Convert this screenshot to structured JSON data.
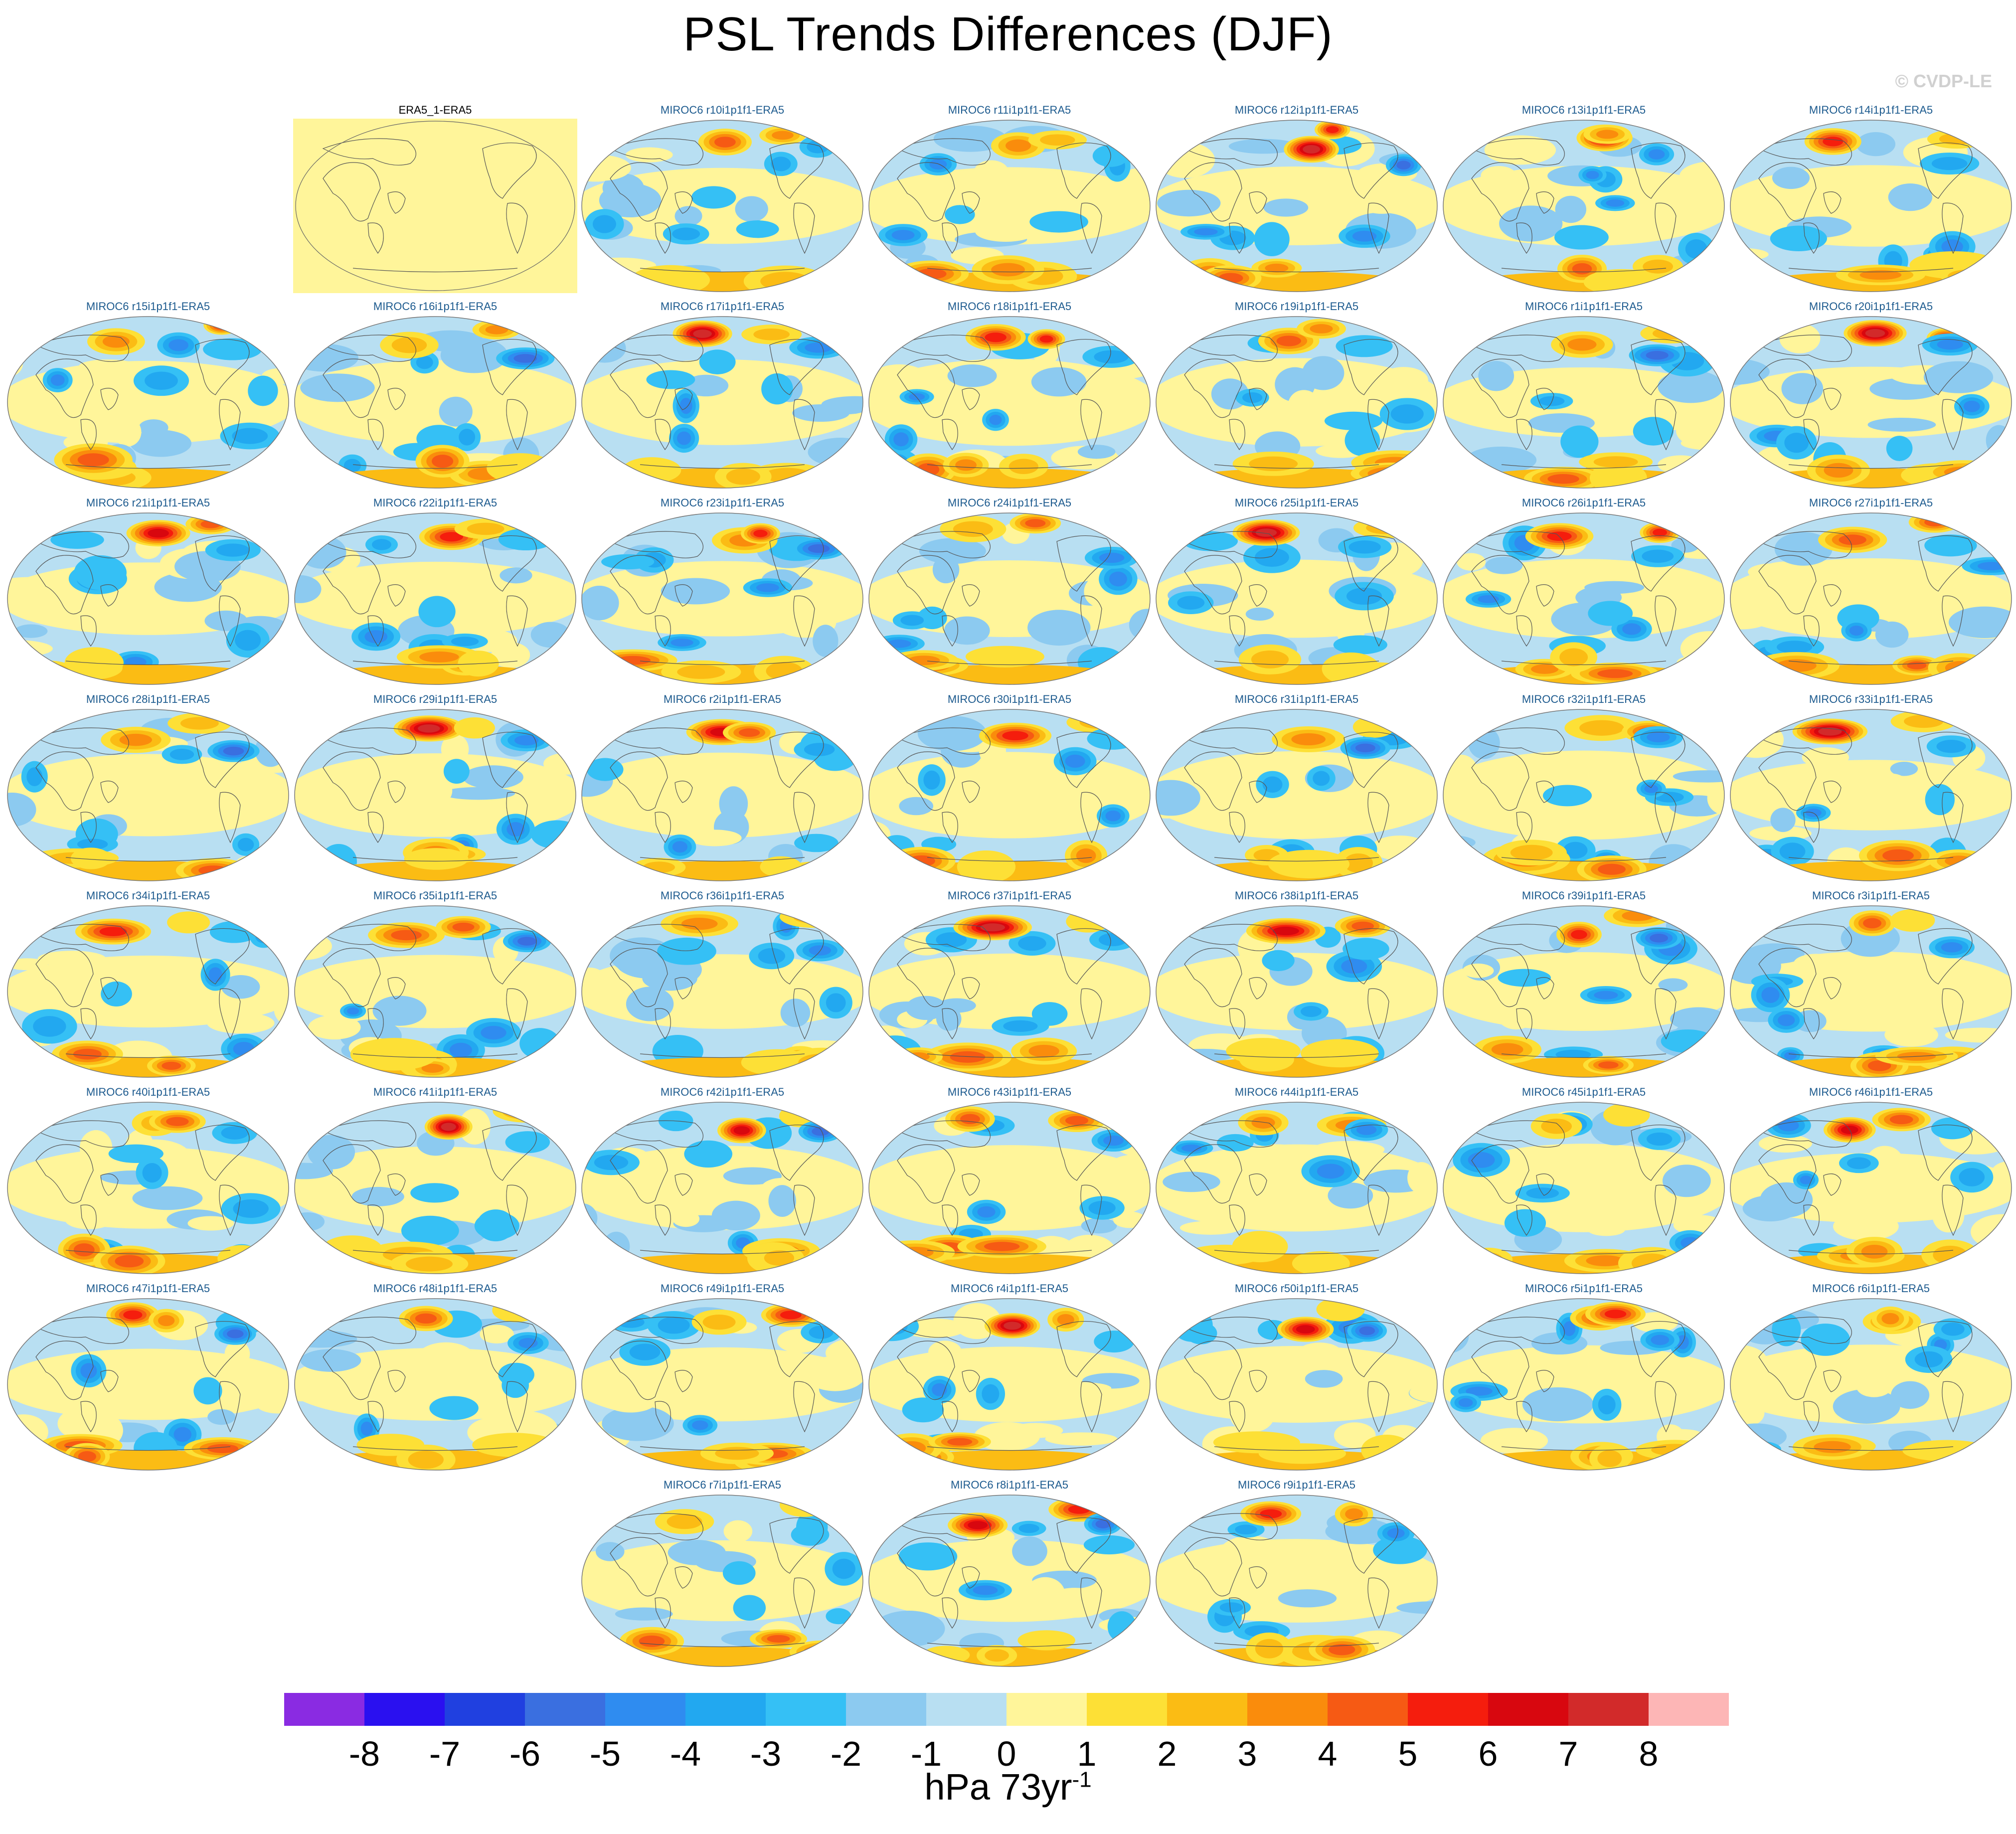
{
  "title": "PSL Trends Differences (DJF)",
  "credit": "© CVDP-LE",
  "units": {
    "base": "hPa 73yr",
    "exponent": "-1"
  },
  "colorbar": {
    "colors": [
      "#8a2be2",
      "#2a10f0",
      "#2040e0",
      "#3a6fe0",
      "#2f8cf0",
      "#22a8f0",
      "#35c0f5",
      "#8ccaf0",
      "#b8dff2",
      "#fff59a",
      "#fde036",
      "#fbbc14",
      "#fa8c0c",
      "#f65a14",
      "#f51d0d",
      "#d8070f",
      "#d22a2a",
      "#fdb6b6"
    ],
    "ticks": [
      "-8",
      "-7",
      "-6",
      "-5",
      "-4",
      "-3",
      "-2",
      "-1",
      "0",
      "1",
      "2",
      "3",
      "4",
      "5",
      "6",
      "7",
      "8"
    ]
  },
  "panels": [
    {
      "label": "ERA5_1-ERA5",
      "reference": true
    },
    {
      "label": "MIROC6 r10i1p1f1-ERA5"
    },
    {
      "label": "MIROC6 r11i1p1f1-ERA5"
    },
    {
      "label": "MIROC6 r12i1p1f1-ERA5"
    },
    {
      "label": "MIROC6 r13i1p1f1-ERA5"
    },
    {
      "label": "MIROC6 r14i1p1f1-ERA5"
    },
    {
      "label": "MIROC6 r15i1p1f1-ERA5"
    },
    {
      "label": "MIROC6 r16i1p1f1-ERA5"
    },
    {
      "label": "MIROC6 r17i1p1f1-ERA5"
    },
    {
      "label": "MIROC6 r18i1p1f1-ERA5"
    },
    {
      "label": "MIROC6 r19i1p1f1-ERA5"
    },
    {
      "label": "MIROC6 r1i1p1f1-ERA5"
    },
    {
      "label": "MIROC6 r20i1p1f1-ERA5"
    },
    {
      "label": "MIROC6 r21i1p1f1-ERA5"
    },
    {
      "label": "MIROC6 r22i1p1f1-ERA5"
    },
    {
      "label": "MIROC6 r23i1p1f1-ERA5"
    },
    {
      "label": "MIROC6 r24i1p1f1-ERA5"
    },
    {
      "label": "MIROC6 r25i1p1f1-ERA5"
    },
    {
      "label": "MIROC6 r26i1p1f1-ERA5"
    },
    {
      "label": "MIROC6 r27i1p1f1-ERA5"
    },
    {
      "label": "MIROC6 r28i1p1f1-ERA5"
    },
    {
      "label": "MIROC6 r29i1p1f1-ERA5"
    },
    {
      "label": "MIROC6 r2i1p1f1-ERA5"
    },
    {
      "label": "MIROC6 r30i1p1f1-ERA5"
    },
    {
      "label": "MIROC6 r31i1p1f1-ERA5"
    },
    {
      "label": "MIROC6 r32i1p1f1-ERA5"
    },
    {
      "label": "MIROC6 r33i1p1f1-ERA5"
    },
    {
      "label": "MIROC6 r34i1p1f1-ERA5"
    },
    {
      "label": "MIROC6 r35i1p1f1-ERA5"
    },
    {
      "label": "MIROC6 r36i1p1f1-ERA5"
    },
    {
      "label": "MIROC6 r37i1p1f1-ERA5"
    },
    {
      "label": "MIROC6 r38i1p1f1-ERA5"
    },
    {
      "label": "MIROC6 r39i1p1f1-ERA5"
    },
    {
      "label": "MIROC6 r3i1p1f1-ERA5"
    },
    {
      "label": "MIROC6 r40i1p1f1-ERA5"
    },
    {
      "label": "MIROC6 r41i1p1f1-ERA5"
    },
    {
      "label": "MIROC6 r42i1p1f1-ERA5"
    },
    {
      "label": "MIROC6 r43i1p1f1-ERA5"
    },
    {
      "label": "MIROC6 r44i1p1f1-ERA5"
    },
    {
      "label": "MIROC6 r45i1p1f1-ERA5"
    },
    {
      "label": "MIROC6 r46i1p1f1-ERA5"
    },
    {
      "label": "MIROC6 r47i1p1f1-ERA5"
    },
    {
      "label": "MIROC6 r48i1p1f1-ERA5"
    },
    {
      "label": "MIROC6 r49i1p1f1-ERA5"
    },
    {
      "label": "MIROC6 r4i1p1f1-ERA5"
    },
    {
      "label": "MIROC6 r50i1p1f1-ERA5"
    },
    {
      "label": "MIROC6 r5i1p1f1-ERA5"
    },
    {
      "label": "MIROC6 r6i1p1f1-ERA5"
    },
    {
      "label": "MIROC6 r7i1p1f1-ERA5"
    },
    {
      "label": "MIROC6 r8i1p1f1-ERA5"
    },
    {
      "label": "MIROC6 r9i1p1f1-ERA5"
    }
  ]
}
